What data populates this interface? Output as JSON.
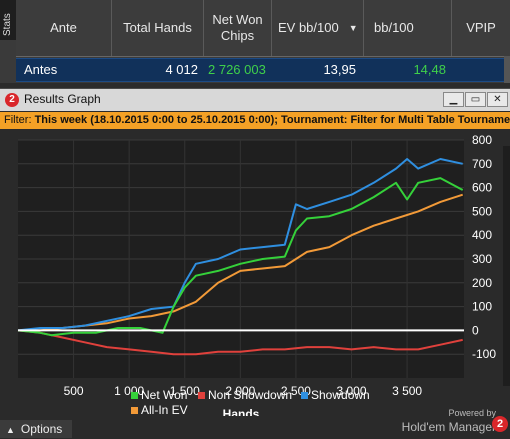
{
  "stats": {
    "tab_label": "Stats",
    "headers": [
      "Ante",
      "Total Hands",
      "Net Won Chips",
      "EV bb/100",
      "bb/100",
      "VPIP"
    ],
    "row": {
      "ante": "Antes",
      "total_hands": "4 012",
      "net_won_chips": "2 726 003",
      "ev_bb100": "13,95",
      "bb100": "14,48"
    }
  },
  "window": {
    "title": "Results Graph",
    "badge": "2",
    "buttons": [
      "minimize",
      "restore",
      "close"
    ]
  },
  "filter": {
    "label": "Filter:",
    "value": "This week (18.10.2015 0:00 to 25.10.2015 0:00); Tournament: Filter for Multi Table Tournaments"
  },
  "footer": {
    "options_label": "Options",
    "powered_by": "Powered by",
    "brand": "Hold'em Manager",
    "brand_badge": "2"
  },
  "colors": {
    "net_won": "#35d13a",
    "non_showdown": "#e0413c",
    "showdown": "#2f8fe0",
    "all_in_ev": "#f29a38",
    "accent": "#f4a126"
  },
  "chart_data": {
    "type": "line",
    "xlabel": "Hands",
    "xlim": [
      0,
      4012
    ],
    "ylim": [
      -200,
      800
    ],
    "xticks": [
      500,
      1000,
      1500,
      2000,
      2500,
      3000,
      3500
    ],
    "xtick_labels": [
      "500",
      "1 000",
      "1 500",
      "2 000",
      "2 500",
      "3 000",
      "3 500"
    ],
    "yticks": [
      800,
      700,
      600,
      500,
      400,
      300,
      200,
      100,
      0,
      -100
    ],
    "ytick_labels": [
      "800",
      "700",
      "600",
      "500",
      "400",
      "300",
      "200",
      "100",
      "0",
      "-100"
    ],
    "legend_position": "bottom",
    "grid": true,
    "series": [
      {
        "name": "Net Won",
        "x": [
          0,
          200,
          300,
          500,
          700,
          900,
          1100,
          1300,
          1400,
          1500,
          1600,
          1800,
          2000,
          2200,
          2400,
          2500,
          2600,
          2800,
          3000,
          3200,
          3400,
          3500,
          3600,
          3800,
          4000
        ],
        "y": [
          0,
          -10,
          -20,
          -10,
          -10,
          10,
          10,
          -10,
          100,
          180,
          230,
          250,
          280,
          300,
          310,
          420,
          470,
          480,
          510,
          560,
          620,
          550,
          620,
          640,
          590
        ]
      },
      {
        "name": "Non Showdown",
        "x": [
          0,
          200,
          400,
          600,
          800,
          1000,
          1200,
          1400,
          1600,
          1800,
          2000,
          2200,
          2400,
          2600,
          2800,
          3000,
          3200,
          3400,
          3600,
          3800,
          4000
        ],
        "y": [
          0,
          -10,
          -30,
          -50,
          -70,
          -80,
          -90,
          -100,
          -100,
          -90,
          -90,
          -80,
          -80,
          -70,
          -70,
          -80,
          -70,
          -80,
          -80,
          -60,
          -40
        ]
      },
      {
        "name": "Showdown",
        "x": [
          0,
          200,
          400,
          600,
          800,
          1000,
          1200,
          1400,
          1500,
          1600,
          1800,
          2000,
          2200,
          2400,
          2500,
          2600,
          2800,
          3000,
          3200,
          3400,
          3500,
          3600,
          3800,
          4000
        ],
        "y": [
          0,
          10,
          10,
          20,
          40,
          60,
          90,
          100,
          200,
          280,
          300,
          340,
          350,
          360,
          530,
          510,
          540,
          570,
          620,
          680,
          720,
          680,
          720,
          700
        ]
      },
      {
        "name": "All-In EV",
        "x": [
          0,
          200,
          400,
          600,
          800,
          1000,
          1200,
          1400,
          1600,
          1800,
          2000,
          2200,
          2400,
          2600,
          2800,
          3000,
          3200,
          3400,
          3600,
          3800,
          4000
        ],
        "y": [
          0,
          0,
          10,
          20,
          30,
          50,
          60,
          80,
          120,
          200,
          250,
          260,
          270,
          330,
          350,
          400,
          440,
          470,
          500,
          540,
          570
        ]
      }
    ]
  }
}
